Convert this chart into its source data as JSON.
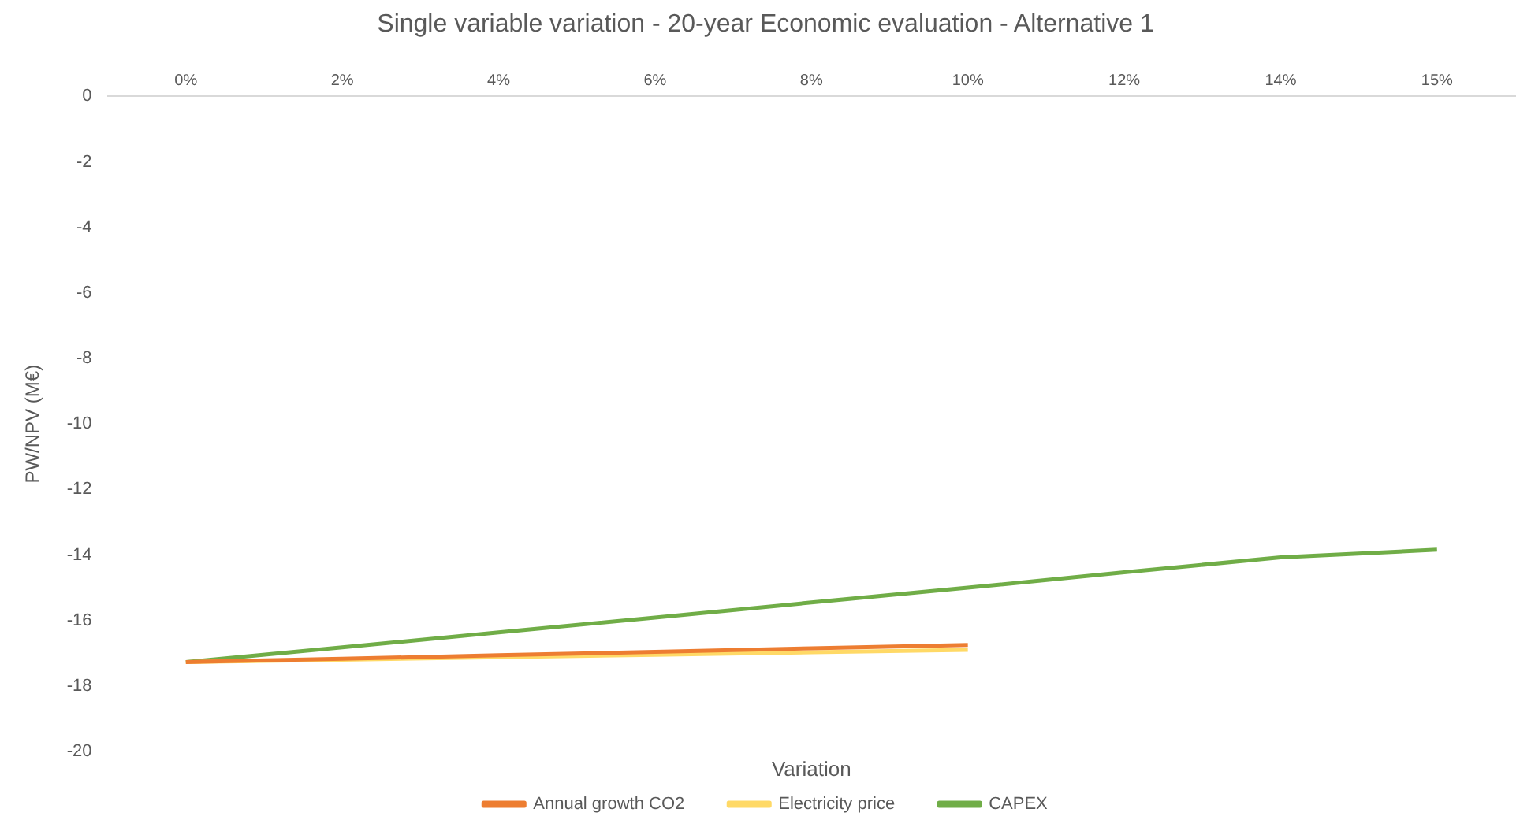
{
  "chart_data": {
    "type": "line",
    "title": "Single variable variation - 20-year Economic evaluation - Alternative 1",
    "xlabel": "Variation",
    "ylabel": "PW/NPV (M€)",
    "categories": [
      "0%",
      "2%",
      "4%",
      "6%",
      "8%",
      "10%",
      "12%",
      "14%",
      "15%"
    ],
    "series": [
      {
        "name": "Annual growth CO2",
        "color": "#ed7d31",
        "values": [
          -17.27,
          -17.17,
          -17.06,
          -16.96,
          -16.85,
          -16.75,
          null,
          null,
          null
        ]
      },
      {
        "name": "Electricity price",
        "color": "#ffd966",
        "values": [
          -17.27,
          -17.2,
          -17.12,
          -17.05,
          -16.97,
          -16.9,
          null,
          null,
          null
        ]
      },
      {
        "name": "CAPEX",
        "color": "#70ad47",
        "values": [
          -17.27,
          -16.82,
          -16.36,
          -15.91,
          -15.45,
          -15.0,
          -14.53,
          -14.07,
          -13.84
        ]
      }
    ],
    "ylim": [
      -20,
      0
    ],
    "yticks": [
      0,
      -2,
      -4,
      -6,
      -8,
      -10,
      -12,
      -14,
      -16,
      -18,
      -20
    ],
    "grid": false,
    "legend": "bottom",
    "marker": "none",
    "line_style": "solid"
  }
}
